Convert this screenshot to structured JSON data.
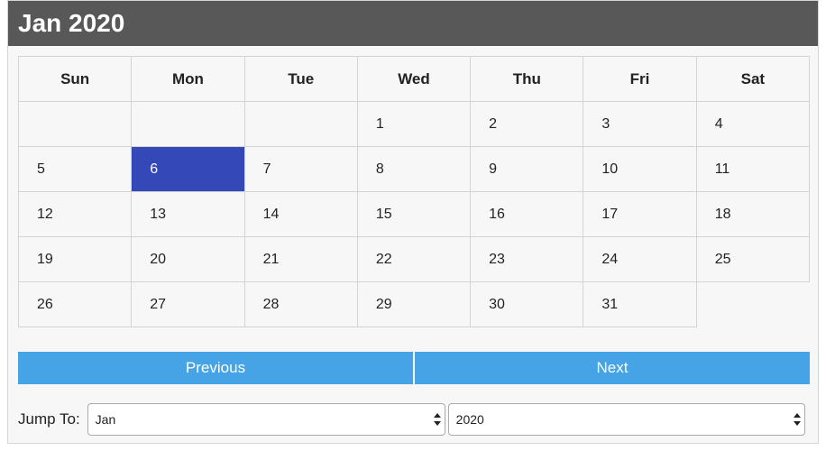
{
  "header": {
    "title": "Jan 2020"
  },
  "calendar": {
    "weekdays": [
      "Sun",
      "Mon",
      "Tue",
      "Wed",
      "Thu",
      "Fri",
      "Sat"
    ],
    "weeks": [
      [
        "",
        "",
        "",
        "1",
        "2",
        "3",
        "4"
      ],
      [
        "5",
        "6",
        "7",
        "8",
        "9",
        "10",
        "11"
      ],
      [
        "12",
        "13",
        "14",
        "15",
        "16",
        "17",
        "18"
      ],
      [
        "19",
        "20",
        "21",
        "22",
        "23",
        "24",
        "25"
      ],
      [
        "26",
        "27",
        "28",
        "29",
        "30",
        "31",
        ""
      ]
    ],
    "selected_day": "6",
    "selected_color": "#3448b8"
  },
  "nav": {
    "previous_label": "Previous",
    "next_label": "Next",
    "button_color": "#46a3e6"
  },
  "jump": {
    "label": "Jump To:",
    "month_value": "Jan",
    "year_value": "2020"
  },
  "colors": {
    "header_bg": "#585858"
  }
}
